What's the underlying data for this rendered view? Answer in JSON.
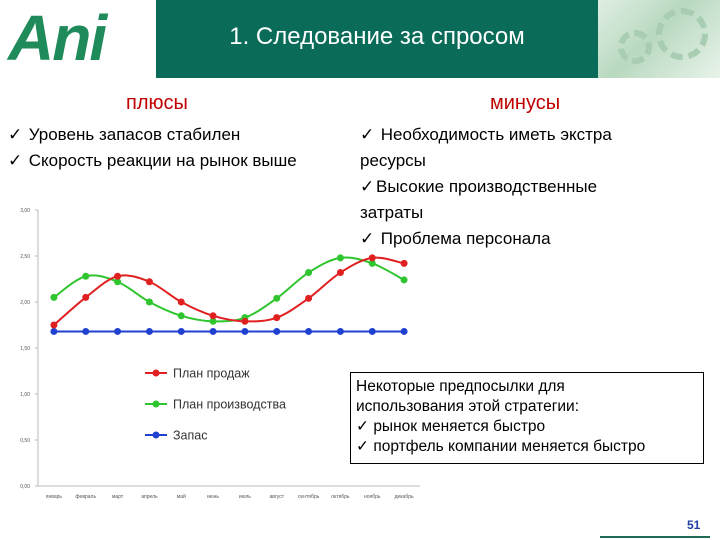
{
  "header": {
    "logo": "Ani",
    "title": "1. Следование за спросом"
  },
  "plus": {
    "heading": "плюсы",
    "items": [
      "Уровень запасов стабилен",
      "Скорость реакции на рынок выше"
    ]
  },
  "minus": {
    "heading": "минусы",
    "items": [
      " Необходимость иметь экстра",
      "ресурсы",
      "Высокие производственные",
      "затраты",
      " Проблема персонала"
    ]
  },
  "note": {
    "lines": [
      "Некоторые предпосылки для",
      "использования этой стратегии:",
      "рынок меняется быстро",
      "портфель компании меняется быстро"
    ]
  },
  "page_number": "51",
  "chart_data": {
    "type": "line",
    "categories": [
      "январь",
      "февраль",
      "март",
      "апрель",
      "май",
      "июнь",
      "июль",
      "август",
      "сентябрь",
      "октябрь",
      "ноябрь",
      "декабрь"
    ],
    "y_ticks": [
      "3,00",
      "2,50",
      "2,00",
      "1,50",
      "1,00",
      "0,50",
      "0,00"
    ],
    "ylim": [
      0,
      3
    ],
    "series": [
      {
        "name": "План продаж",
        "color": "#e02020",
        "values": [
          1.75,
          2.05,
          2.28,
          2.22,
          2.0,
          1.85,
          1.79,
          1.83,
          2.04,
          2.32,
          2.48,
          2.42
        ]
      },
      {
        "name": "План производства",
        "color": "#2ec52e",
        "values": [
          2.05,
          2.28,
          2.22,
          2.0,
          1.85,
          1.79,
          1.83,
          2.04,
          2.32,
          2.48,
          2.42,
          2.24
        ]
      },
      {
        "name": "Запас",
        "color": "#2040d0",
        "values": [
          1.68,
          1.68,
          1.68,
          1.68,
          1.68,
          1.68,
          1.68,
          1.68,
          1.68,
          1.68,
          1.68,
          1.68
        ]
      }
    ]
  }
}
